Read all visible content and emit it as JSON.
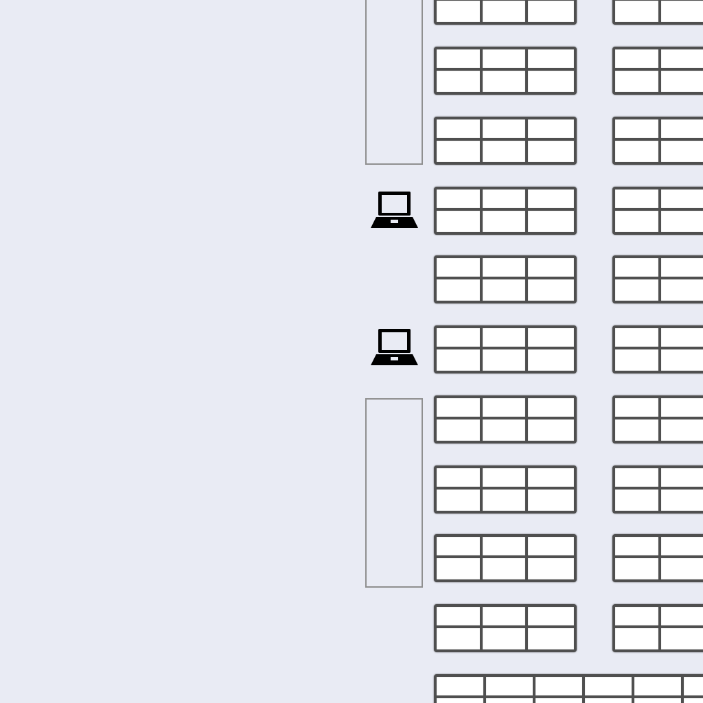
{
  "floor_plan": {
    "background_color": "#e9ebf4",
    "seat_outline_color": "#4f4f4f",
    "seat_fill_color": "#ffffff",
    "aisle_marker_color": "#8f8f8f",
    "laptop_icon": "laptop-icon",
    "laptop_icon_color": "#000000",
    "seat_rows": [
      {
        "row": 1,
        "blocks": [
          {
            "columns": 3,
            "rows": 2
          },
          {
            "columns": 3,
            "rows": 2
          }
        ]
      },
      {
        "row": 2,
        "blocks": [
          {
            "columns": 3,
            "rows": 2
          },
          {
            "columns": 3,
            "rows": 2
          }
        ]
      },
      {
        "row": 3,
        "blocks": [
          {
            "columns": 3,
            "rows": 2
          },
          {
            "columns": 3,
            "rows": 2
          }
        ]
      },
      {
        "row": 4,
        "blocks": [
          {
            "columns": 3,
            "rows": 2
          },
          {
            "columns": 3,
            "rows": 2
          }
        ]
      },
      {
        "row": 5,
        "blocks": [
          {
            "columns": 3,
            "rows": 2
          },
          {
            "columns": 3,
            "rows": 2
          }
        ]
      },
      {
        "row": 6,
        "blocks": [
          {
            "columns": 3,
            "rows": 2
          },
          {
            "columns": 3,
            "rows": 2
          }
        ]
      },
      {
        "row": 7,
        "blocks": [
          {
            "columns": 3,
            "rows": 2
          },
          {
            "columns": 3,
            "rows": 2
          }
        ]
      },
      {
        "row": 8,
        "blocks": [
          {
            "columns": 3,
            "rows": 2
          },
          {
            "columns": 3,
            "rows": 2
          }
        ]
      },
      {
        "row": 9,
        "blocks": [
          {
            "columns": 3,
            "rows": 2
          },
          {
            "columns": 3,
            "rows": 2
          }
        ]
      },
      {
        "row": 10,
        "blocks": [
          {
            "columns": 3,
            "rows": 2
          },
          {
            "columns": 3,
            "rows": 2
          }
        ]
      },
      {
        "row": 11,
        "blocks": [
          {
            "columns": 6,
            "rows": 2
          }
        ]
      }
    ],
    "laptop_markers": [
      {
        "beside_row": 4
      },
      {
        "beside_row": 6
      }
    ],
    "aisle_markers": [
      {
        "spans_rows": [
          1,
          2,
          3
        ]
      },
      {
        "spans_rows": [
          7,
          8,
          9
        ]
      }
    ]
  }
}
